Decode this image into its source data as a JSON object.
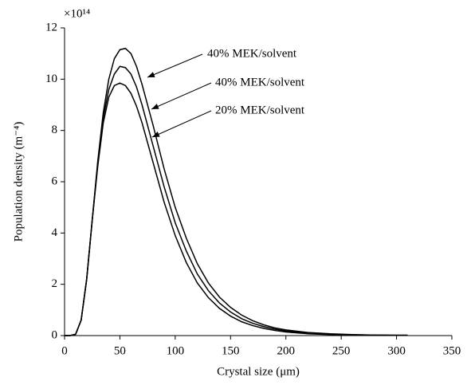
{
  "chart_data": {
    "type": "line",
    "x_label": "Crystal size (μm)",
    "y_label": "Population density (m⁻⁴)",
    "y_multiplier": "×10¹⁴",
    "annotations": [
      "40% MEK/solvent",
      "40% MEK/solvent",
      "20% MEK/solvent"
    ],
    "x": [
      0,
      5,
      10,
      15,
      20,
      25,
      30,
      35,
      40,
      45,
      50,
      55,
      60,
      65,
      70,
      80,
      90,
      100,
      110,
      120,
      130,
      140,
      150,
      160,
      170,
      180,
      190,
      200,
      220,
      240,
      260,
      280,
      300,
      310
    ],
    "series": [
      {
        "color": "#000000",
        "values": [
          0,
          0,
          0.05,
          0.6,
          2.2,
          4.5,
          6.8,
          8.7,
          10.0,
          10.8,
          11.15,
          11.2,
          11.0,
          10.5,
          9.8,
          8.2,
          6.5,
          5.0,
          3.8,
          2.8,
          2.05,
          1.5,
          1.1,
          0.8,
          0.58,
          0.42,
          0.3,
          0.22,
          0.12,
          0.07,
          0.04,
          0.02,
          0.01,
          0.01
        ]
      },
      {
        "color": "#000000",
        "values": [
          0,
          0,
          0.05,
          0.6,
          2.2,
          4.5,
          6.7,
          8.5,
          9.6,
          10.2,
          10.5,
          10.45,
          10.2,
          9.7,
          9.0,
          7.4,
          5.8,
          4.4,
          3.3,
          2.4,
          1.75,
          1.27,
          0.92,
          0.66,
          0.48,
          0.35,
          0.25,
          0.18,
          0.1,
          0.05,
          0.03,
          0.02,
          0.01,
          0.01
        ]
      },
      {
        "color": "#000000",
        "values": [
          0,
          0,
          0.05,
          0.6,
          2.2,
          4.5,
          6.6,
          8.3,
          9.3,
          9.75,
          9.85,
          9.75,
          9.45,
          8.95,
          8.3,
          6.75,
          5.2,
          3.9,
          2.85,
          2.05,
          1.48,
          1.06,
          0.76,
          0.54,
          0.39,
          0.28,
          0.2,
          0.14,
          0.07,
          0.04,
          0.02,
          0.01,
          0.01,
          0.01
        ]
      }
    ],
    "xlim": [
      0,
      350
    ],
    "xticks": [
      0,
      50,
      100,
      150,
      200,
      250,
      300,
      350
    ],
    "ylim": [
      0,
      12
    ],
    "yticks": [
      0,
      2,
      4,
      6,
      8,
      10,
      12
    ]
  }
}
